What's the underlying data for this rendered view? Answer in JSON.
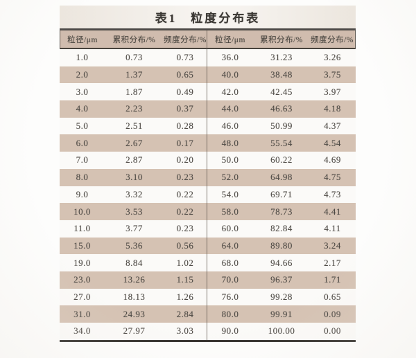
{
  "document": {
    "title": "表1　粒度分布表",
    "table": {
      "column_headers": [
        "粒径/μm",
        "累积分布/%",
        "频度分布/%"
      ],
      "left_rows": [
        [
          "1.0",
          "0.73",
          "0.73"
        ],
        [
          "2.0",
          "1.37",
          "0.65"
        ],
        [
          "3.0",
          "1.87",
          "0.49"
        ],
        [
          "4.0",
          "2.23",
          "0.37"
        ],
        [
          "5.0",
          "2.51",
          "0.28"
        ],
        [
          "6.0",
          "2.67",
          "0.17"
        ],
        [
          "7.0",
          "2.87",
          "0.20"
        ],
        [
          "8.0",
          "3.10",
          "0.23"
        ],
        [
          "9.0",
          "3.32",
          "0.22"
        ],
        [
          "10.0",
          "3.53",
          "0.22"
        ],
        [
          "11.0",
          "3.77",
          "0.23"
        ],
        [
          "15.0",
          "5.36",
          "0.56"
        ],
        [
          "19.0",
          "8.84",
          "1.02"
        ],
        [
          "23.0",
          "13.26",
          "1.15"
        ],
        [
          "27.0",
          "18.13",
          "1.26"
        ],
        [
          "31.0",
          "24.93",
          "2.84"
        ],
        [
          "34.0",
          "27.97",
          "3.03"
        ]
      ],
      "right_rows": [
        [
          "36.0",
          "31.23",
          "3.26"
        ],
        [
          "40.0",
          "38.48",
          "3.75"
        ],
        [
          "42.0",
          "42.45",
          "3.97"
        ],
        [
          "44.0",
          "46.63",
          "4.18"
        ],
        [
          "46.0",
          "50.99",
          "4.37"
        ],
        [
          "48.0",
          "55.54",
          "4.54"
        ],
        [
          "50.0",
          "60.22",
          "4.69"
        ],
        [
          "52.0",
          "64.98",
          "4.75"
        ],
        [
          "54.0",
          "69.71",
          "4.73"
        ],
        [
          "58.0",
          "78.73",
          "4.41"
        ],
        [
          "60.0",
          "82.84",
          "4.11"
        ],
        [
          "64.0",
          "89.80",
          "3.24"
        ],
        [
          "68.0",
          "94.66",
          "2.17"
        ],
        [
          "70.0",
          "96.37",
          "1.71"
        ],
        [
          "76.0",
          "99.28",
          "0.65"
        ],
        [
          "80.0",
          "99.91",
          "0.09"
        ],
        [
          "90.0",
          "100.00",
          "0.00"
        ]
      ]
    },
    "colors": {
      "row_stripe": "#d5c2b3",
      "header_bg": "#d0bcae",
      "title_bg": "#ece6de",
      "rule": "#34312d",
      "text": "#4e4a45"
    }
  }
}
